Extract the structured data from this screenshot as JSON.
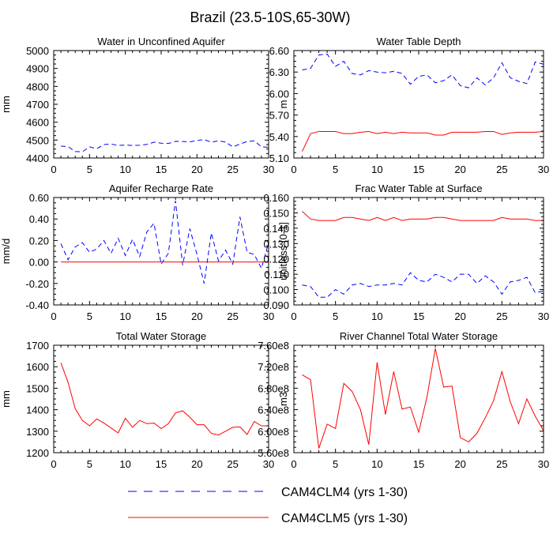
{
  "title": "Brazil (23.5-10S,65-30W)",
  "colors": {
    "blue": "#0000ff",
    "red": "#ff0000",
    "axis": "#000000"
  },
  "legend": [
    {
      "label": "CAM4CLM4 (yrs 1-30)",
      "color": "#0000ff",
      "dash": true
    },
    {
      "label": "CAM4CLM5 (yrs 1-30)",
      "color": "#ff0000",
      "dash": false
    }
  ],
  "chart_data": [
    {
      "type": "line",
      "title": "Water in Unconfined Aquifer",
      "ylabel": "mm",
      "xlim": [
        0,
        30
      ],
      "ylim": [
        4400,
        5000
      ],
      "xticks": [
        0,
        5,
        10,
        15,
        20,
        25,
        30
      ],
      "yticks": [
        4400,
        4500,
        4600,
        4700,
        4800,
        4900,
        5000
      ],
      "yticklabels": [
        "4400",
        "4500",
        "4600",
        "4700",
        "4800",
        "4900",
        "5000"
      ],
      "x": [
        1,
        2,
        3,
        4,
        5,
        6,
        7,
        8,
        9,
        10,
        11,
        12,
        13,
        14,
        15,
        16,
        17,
        18,
        19,
        20,
        21,
        22,
        23,
        24,
        25,
        26,
        27,
        28,
        29,
        30
      ],
      "series": [
        {
          "name": "CAM4CLM4 (yrs 1-30)",
          "color": "#0000ff",
          "dash": true,
          "values": [
            4466,
            4464,
            4436,
            4435,
            4462,
            4452,
            4475,
            4478,
            4470,
            4472,
            4470,
            4471,
            4476,
            4488,
            4483,
            4481,
            4493,
            4492,
            4490,
            4498,
            4503,
            4488,
            4496,
            4489,
            4462,
            4478,
            4492,
            4496,
            4462,
            4460
          ]
        },
        {
          "name": "CAM4CLM5 (yrs 1-30)",
          "color": "#ff0000",
          "dash": false,
          "values": [
            5000,
            5000,
            5000,
            5000,
            5000,
            5000,
            5000,
            5000,
            5000,
            5000,
            5000,
            5000,
            5000,
            5000,
            5000,
            5000,
            5000,
            5000,
            5000,
            5000,
            5000,
            5000,
            5000,
            5000,
            5000,
            5000,
            5000,
            5000,
            5000,
            5000
          ]
        }
      ]
    },
    {
      "type": "line",
      "title": "Water Table Depth",
      "ylabel": "m",
      "xlim": [
        0,
        30
      ],
      "ylim": [
        5.1,
        6.6
      ],
      "xticks": [
        0,
        5,
        10,
        15,
        20,
        25,
        30
      ],
      "yticks": [
        5.1,
        5.4,
        5.7,
        6.0,
        6.3,
        6.6
      ],
      "yticklabels": [
        "5.10",
        "5.40",
        "5.70",
        "6.00",
        "6.30",
        "6.60"
      ],
      "x": [
        1,
        2,
        3,
        4,
        5,
        6,
        7,
        8,
        9,
        10,
        11,
        12,
        13,
        14,
        15,
        16,
        17,
        18,
        19,
        20,
        21,
        22,
        23,
        24,
        25,
        26,
        27,
        28,
        29,
        30
      ],
      "series": [
        {
          "name": "CAM4CLM4 (yrs 1-30)",
          "color": "#0000ff",
          "dash": true,
          "values": [
            6.33,
            6.35,
            6.54,
            6.55,
            6.38,
            6.45,
            6.28,
            6.26,
            6.32,
            6.3,
            6.29,
            6.31,
            6.28,
            6.13,
            6.24,
            6.26,
            6.15,
            6.18,
            6.26,
            6.11,
            6.08,
            6.22,
            6.12,
            6.22,
            6.43,
            6.22,
            6.17,
            6.14,
            6.44,
            6.41
          ]
        },
        {
          "name": "CAM4CLM5 (yrs 1-30)",
          "color": "#ff0000",
          "dash": false,
          "values": [
            5.19,
            5.44,
            5.47,
            5.47,
            5.47,
            5.44,
            5.44,
            5.46,
            5.47,
            5.44,
            5.46,
            5.44,
            5.46,
            5.45,
            5.45,
            5.45,
            5.42,
            5.42,
            5.46,
            5.46,
            5.46,
            5.46,
            5.47,
            5.47,
            5.43,
            5.45,
            5.46,
            5.46,
            5.46,
            5.47
          ]
        }
      ]
    },
    {
      "type": "line",
      "title": "Aquifer Recharge Rate",
      "ylabel": "mm/d",
      "xlim": [
        0,
        30
      ],
      "ylim": [
        -0.4,
        0.6
      ],
      "xticks": [
        0,
        5,
        10,
        15,
        20,
        25,
        30
      ],
      "yticks": [
        -0.4,
        -0.2,
        0.0,
        0.2,
        0.4,
        0.6
      ],
      "yticklabels": [
        "-0.40",
        "-0.20",
        "0.00",
        "0.20",
        "0.40",
        "0.60"
      ],
      "x": [
        1,
        2,
        3,
        4,
        5,
        6,
        7,
        8,
        9,
        10,
        11,
        12,
        13,
        14,
        15,
        16,
        17,
        18,
        19,
        20,
        21,
        22,
        23,
        24,
        25,
        26,
        27,
        28,
        29,
        30
      ],
      "series": [
        {
          "name": "CAM4CLM4 (yrs 1-30)",
          "color": "#0000ff",
          "dash": true,
          "values": [
            0.17,
            0.02,
            0.14,
            0.18,
            0.09,
            0.12,
            0.2,
            0.08,
            0.22,
            0.06,
            0.21,
            0.05,
            0.28,
            0.36,
            -0.02,
            0.08,
            0.57,
            -0.03,
            0.31,
            0.07,
            -0.2,
            0.27,
            0.01,
            0.11,
            -0.02,
            0.42,
            0.09,
            0.07,
            -0.06,
            0.18
          ]
        },
        {
          "name": "CAM4CLM5 (yrs 1-30)",
          "color": "#ff0000",
          "dash": false,
          "values": [
            0,
            0,
            0,
            0,
            0,
            0,
            0,
            0,
            0,
            0,
            0,
            0,
            0,
            0,
            0,
            0,
            0,
            0,
            0,
            0,
            0,
            0,
            0,
            0,
            0,
            0,
            0,
            0,
            0,
            0
          ]
        }
      ]
    },
    {
      "type": "line",
      "title": "Frac Water Table at Surface",
      "ylabel": "unitless [0-1]",
      "xlim": [
        0,
        30
      ],
      "ylim": [
        0.09,
        0.16
      ],
      "xticks": [
        0,
        5,
        10,
        15,
        20,
        25,
        30
      ],
      "yticks": [
        0.09,
        0.1,
        0.11,
        0.12,
        0.13,
        0.14,
        0.15,
        0.16
      ],
      "yticklabels": [
        "0.090",
        "0.100",
        "0.110",
        "0.120",
        "0.130",
        "0.140",
        "0.150",
        "0.160"
      ],
      "x": [
        1,
        2,
        3,
        4,
        5,
        6,
        7,
        8,
        9,
        10,
        11,
        12,
        13,
        14,
        15,
        16,
        17,
        18,
        19,
        20,
        21,
        22,
        23,
        24,
        25,
        26,
        27,
        28,
        29,
        30
      ],
      "series": [
        {
          "name": "CAM4CLM4 (yrs 1-30)",
          "color": "#0000ff",
          "dash": true,
          "values": [
            0.103,
            0.102,
            0.095,
            0.095,
            0.1,
            0.097,
            0.103,
            0.104,
            0.102,
            0.103,
            0.103,
            0.104,
            0.103,
            0.111,
            0.106,
            0.105,
            0.11,
            0.108,
            0.105,
            0.11,
            0.11,
            0.104,
            0.109,
            0.105,
            0.097,
            0.105,
            0.106,
            0.108,
            0.098,
            0.099
          ]
        },
        {
          "name": "CAM4CLM5 (yrs 1-30)",
          "color": "#ff0000",
          "dash": false,
          "values": [
            0.151,
            0.146,
            0.145,
            0.145,
            0.145,
            0.147,
            0.147,
            0.146,
            0.145,
            0.147,
            0.145,
            0.147,
            0.145,
            0.146,
            0.146,
            0.146,
            0.147,
            0.147,
            0.146,
            0.145,
            0.145,
            0.145,
            0.145,
            0.145,
            0.147,
            0.146,
            0.146,
            0.146,
            0.145,
            0.145
          ]
        }
      ]
    },
    {
      "type": "line",
      "title": "Total Water Storage",
      "ylabel": "mm",
      "xlim": [
        0,
        30
      ],
      "ylim": [
        1200,
        1700
      ],
      "xticks": [
        0,
        5,
        10,
        15,
        20,
        25,
        30
      ],
      "yticks": [
        1200,
        1300,
        1400,
        1500,
        1600,
        1700
      ],
      "yticklabels": [
        "1200",
        "1300",
        "1400",
        "1500",
        "1600",
        "1700"
      ],
      "x": [
        1,
        2,
        3,
        4,
        5,
        6,
        7,
        8,
        9,
        10,
        11,
        12,
        13,
        14,
        15,
        16,
        17,
        18,
        19,
        20,
        21,
        22,
        23,
        24,
        25,
        26,
        27,
        28,
        29,
        30
      ],
      "series": [
        {
          "name": "CAM4CLM5 (yrs 1-30)",
          "color": "#ff0000",
          "dash": false,
          "values": [
            1618,
            1528,
            1405,
            1350,
            1325,
            1357,
            1338,
            1315,
            1292,
            1360,
            1318,
            1350,
            1335,
            1338,
            1312,
            1335,
            1385,
            1395,
            1365,
            1330,
            1330,
            1290,
            1282,
            1300,
            1318,
            1320,
            1285,
            1345,
            1325,
            1325
          ]
        }
      ]
    },
    {
      "type": "line",
      "title": "River Channel Total Water Storage",
      "ylabel": "m3",
      "xlim": [
        0,
        30
      ],
      "ylim": [
        560000000,
        760000000
      ],
      "xticks": [
        0,
        5,
        10,
        15,
        20,
        25,
        30
      ],
      "yticks": [
        560000000,
        600000000,
        640000000,
        680000000,
        720000000,
        760000000
      ],
      "yticklabels": [
        "5.60e8",
        "6.00e8",
        "6.40e8",
        "6.80e8",
        "7.20e8",
        "7.60e8"
      ],
      "x": [
        1,
        2,
        3,
        4,
        5,
        6,
        7,
        8,
        9,
        10,
        11,
        12,
        13,
        14,
        15,
        16,
        17,
        18,
        19,
        20,
        21,
        22,
        23,
        24,
        25,
        26,
        27,
        28,
        29,
        30
      ],
      "series": [
        {
          "name": "CAM4CLM5 (yrs 1-30)",
          "color": "#ff0000",
          "dash": false,
          "values": [
            705000000,
            696000000,
            568000000,
            613000000,
            605000000,
            689000000,
            674000000,
            640000000,
            575000000,
            728000000,
            631000000,
            711000000,
            641000000,
            645000000,
            598000000,
            664000000,
            754000000,
            682000000,
            684000000,
            588000000,
            580000000,
            596000000,
            625000000,
            657000000,
            711000000,
            655000000,
            614000000,
            660000000,
            628000000,
            601000000
          ]
        }
      ]
    }
  ]
}
